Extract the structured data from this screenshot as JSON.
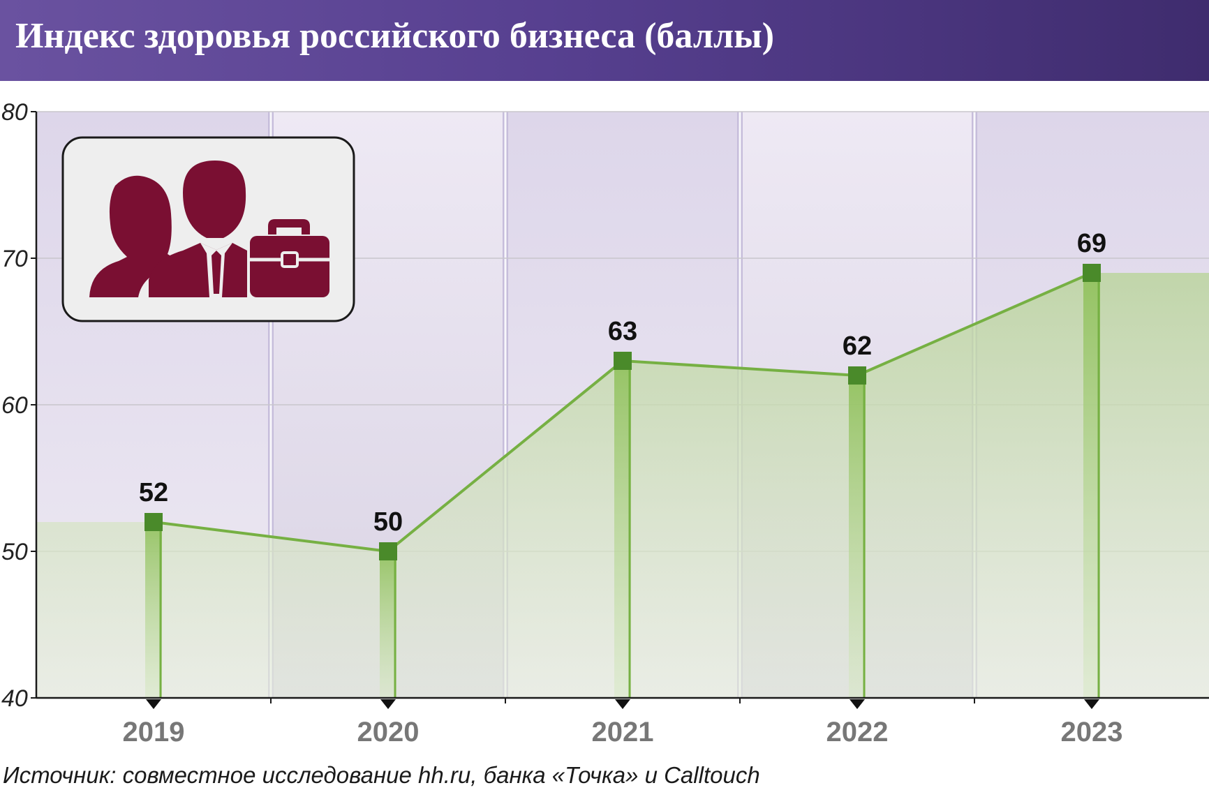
{
  "header": {
    "title": "Индекс здоровья российского бизнеса (баллы)"
  },
  "chart_data": {
    "type": "line",
    "title": "Индекс здоровья российского бизнеса (баллы)",
    "categories": [
      "2019",
      "2020",
      "2021",
      "2022",
      "2023"
    ],
    "series": [
      {
        "values": [
          52,
          50,
          63,
          62,
          69
        ],
        "data_labels": [
          "52",
          "50",
          "63",
          "62",
          "69"
        ]
      }
    ],
    "ylim": [
      40,
      80
    ],
    "yticks": [
      40,
      50,
      60,
      70,
      80
    ],
    "ytick_labels": [
      "40",
      "50",
      "60",
      "70",
      "80"
    ],
    "grid": true,
    "area_fill": true,
    "colors": {
      "line": "#76b043",
      "marker": "#4a8a2a",
      "fill": "#b9d49a",
      "band_dark": "#ddd6ea",
      "band_light": "#eee9f4",
      "separator": "#c6bddb",
      "icon": "#7a0f32"
    }
  },
  "icon": {
    "name": "business-people-briefcase-icon"
  },
  "footer": {
    "source": "Источник: совместное исследование hh.ru, банка «Точка» и Calltouch"
  }
}
